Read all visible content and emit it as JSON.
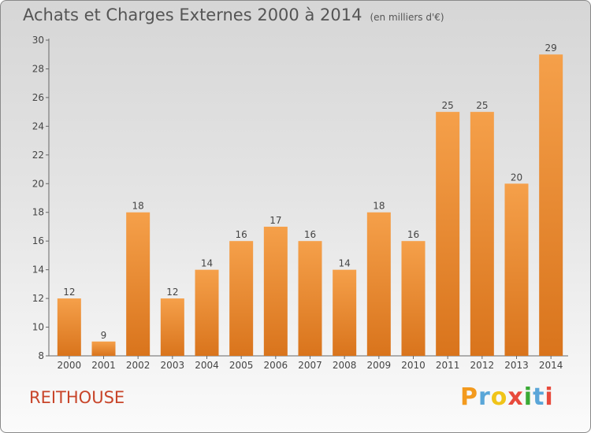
{
  "title": "Achats et Charges Externes 2000 à 2014",
  "unit_note": "(en milliers d'€)",
  "commune": "REITHOUSE",
  "brand": [
    "P",
    "r",
    "o",
    "x",
    "i",
    "t",
    "i"
  ],
  "brand_colors": [
    "#f39a1e",
    "#5aa6d8",
    "#f0c419",
    "#e84a3c",
    "#3aaa35",
    "#5aa6d8",
    "#e84a3c"
  ],
  "colors": {
    "bar_light": "#f5a04a",
    "bar_dark": "#d9741c",
    "text": "#555555",
    "commune": "#c8452a"
  },
  "chart_data": {
    "type": "bar",
    "categories": [
      "2000",
      "2001",
      "2002",
      "2003",
      "2004",
      "2005",
      "2006",
      "2007",
      "2008",
      "2009",
      "2010",
      "2011",
      "2012",
      "2013",
      "2014"
    ],
    "values": [
      12,
      9,
      18,
      12,
      14,
      16,
      17,
      16,
      14,
      18,
      16,
      25,
      25,
      20,
      29
    ],
    "ylim": [
      8,
      30
    ],
    "yticks": [
      8,
      10,
      12,
      14,
      16,
      18,
      20,
      22,
      24,
      26,
      28,
      30
    ],
    "grid": false,
    "title": "Achats et Charges Externes 2000 à 2014",
    "xlabel": "",
    "ylabel": ""
  }
}
